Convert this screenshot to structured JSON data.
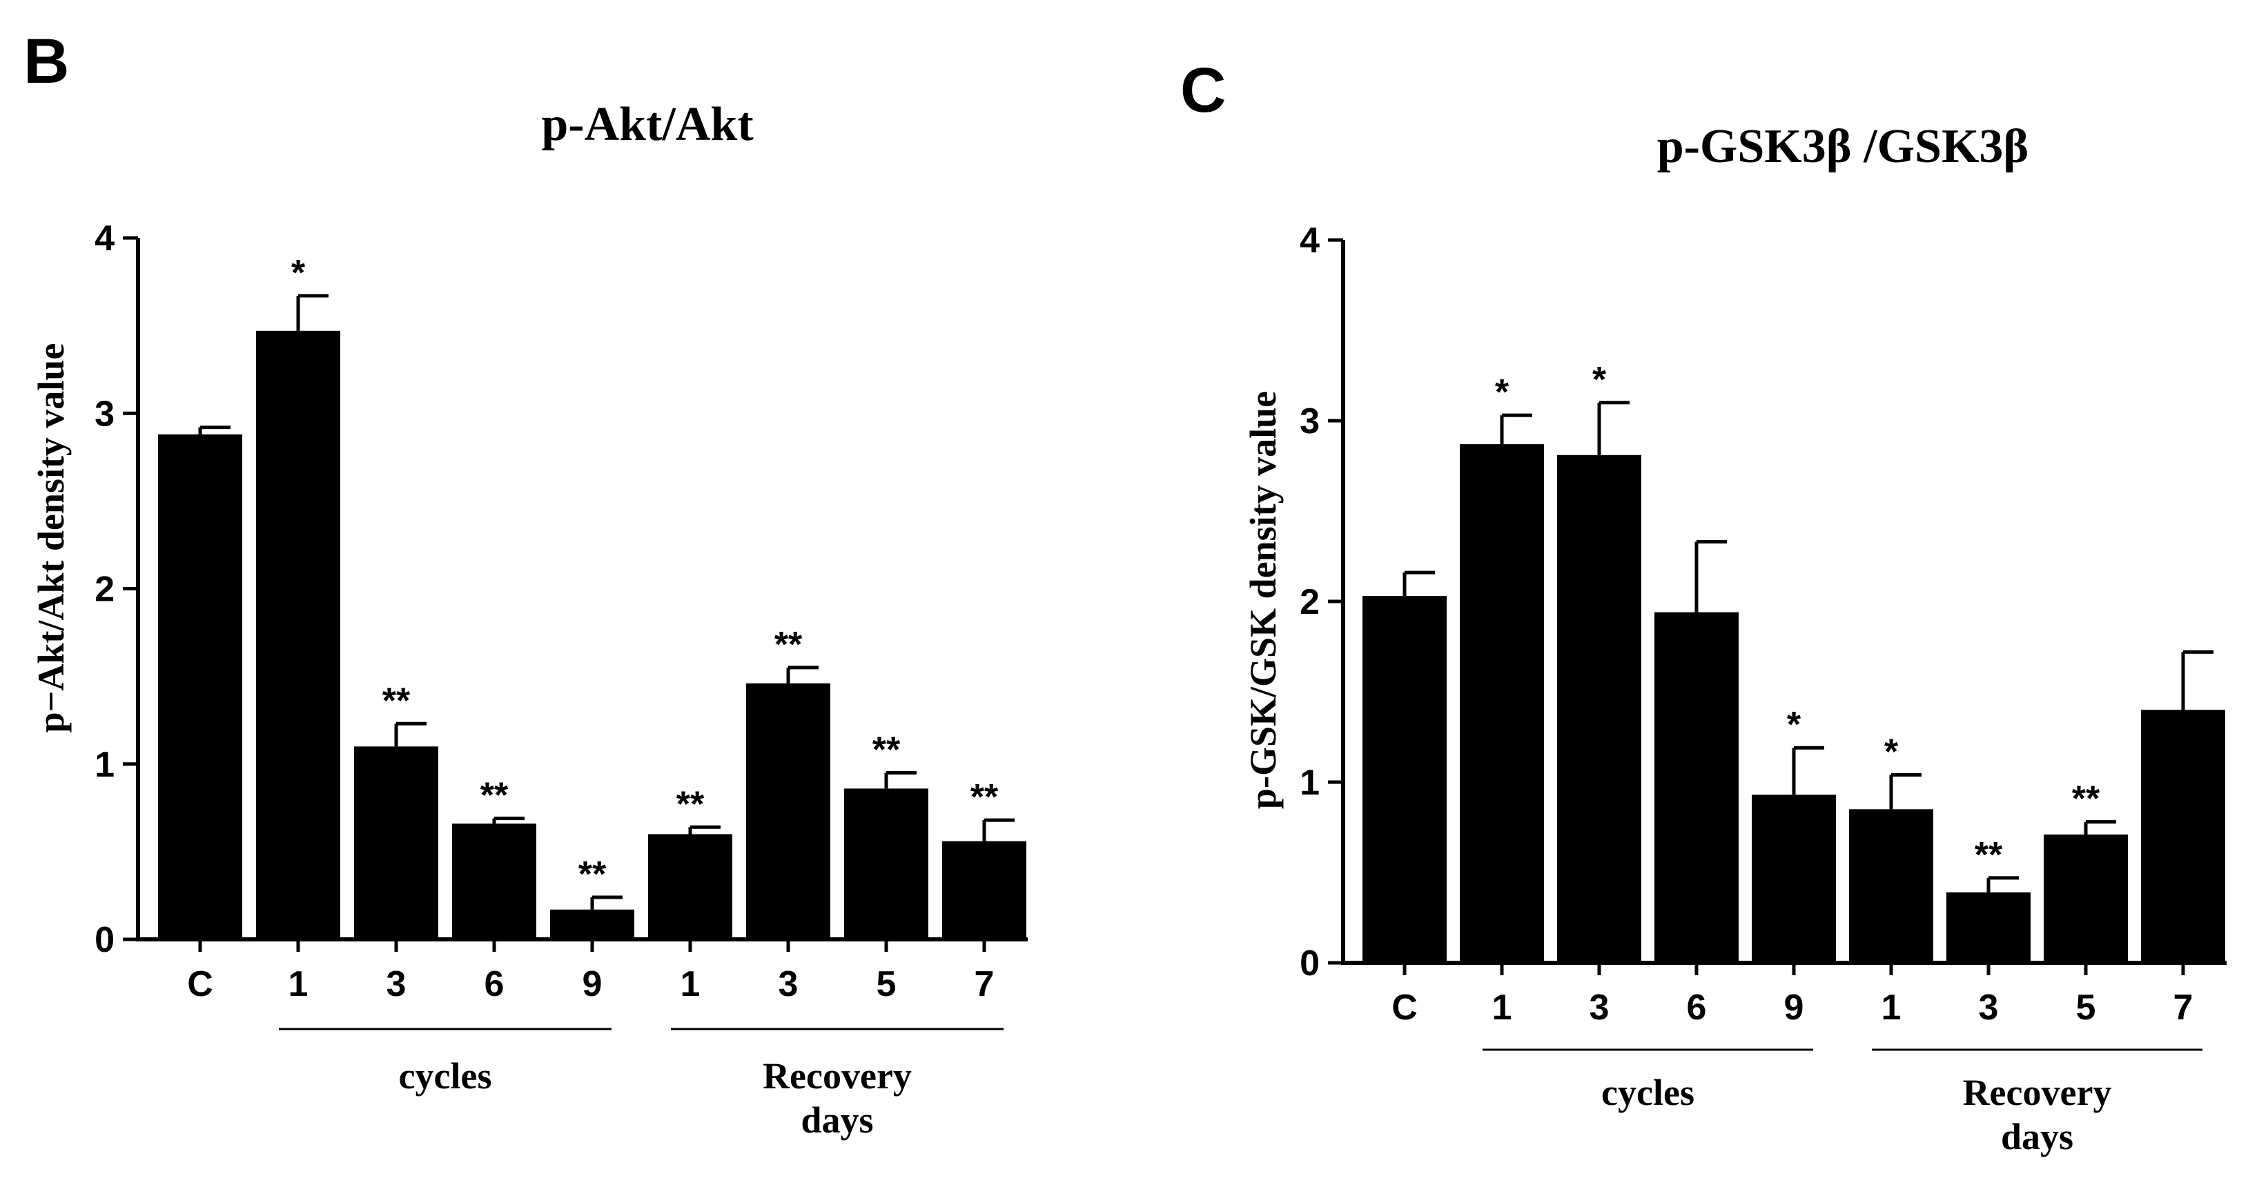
{
  "chart_data": [
    {
      "type": "bar",
      "panel": "B",
      "title": "p-Akt/Akt",
      "ylabel": "p−Akt/Akt density value",
      "xlabel": "",
      "ylim": [
        0,
        4
      ],
      "yticks": [
        "0",
        "1",
        "2",
        "3",
        "4"
      ],
      "categories": [
        "C",
        "1",
        "3",
        "6",
        "9",
        "1",
        "3",
        "5",
        "7"
      ],
      "values": [
        2.88,
        3.47,
        1.1,
        0.66,
        0.17,
        0.6,
        1.46,
        0.86,
        0.56
      ],
      "errors": [
        0.04,
        0.2,
        0.13,
        0.03,
        0.07,
        0.04,
        0.09,
        0.09,
        0.12
      ],
      "significance": [
        "",
        "*",
        "**",
        "**",
        "**",
        "**",
        "**",
        "**",
        "**"
      ],
      "groups": [
        {
          "label": "cycles",
          "start": 1,
          "end": 4
        },
        {
          "label": "Recovery days",
          "start": 5,
          "end": 8
        }
      ],
      "bar_color": "#000000"
    },
    {
      "type": "bar",
      "panel": "C",
      "title": "p-GSK3β /GSK3β",
      "ylabel": "p-GSK/GSK density value",
      "xlabel": "",
      "ylim": [
        0,
        4
      ],
      "yticks": [
        "0",
        "1",
        "2",
        "3",
        "4"
      ],
      "categories": [
        "C",
        "1",
        "3",
        "6",
        "9",
        "1",
        "3",
        "5",
        "7"
      ],
      "values": [
        2.03,
        2.87,
        2.81,
        1.94,
        0.93,
        0.85,
        0.39,
        0.71,
        1.4
      ],
      "errors": [
        0.13,
        0.16,
        0.29,
        0.39,
        0.26,
        0.19,
        0.08,
        0.07,
        0.32
      ],
      "significance": [
        "",
        "*",
        "*",
        "",
        "*",
        "*",
        "**",
        "**",
        ""
      ],
      "groups": [
        {
          "label": "cycles",
          "start": 1,
          "end": 4
        },
        {
          "label": "Recovery days",
          "start": 5,
          "end": 8
        }
      ],
      "bar_color": "#000000"
    }
  ]
}
